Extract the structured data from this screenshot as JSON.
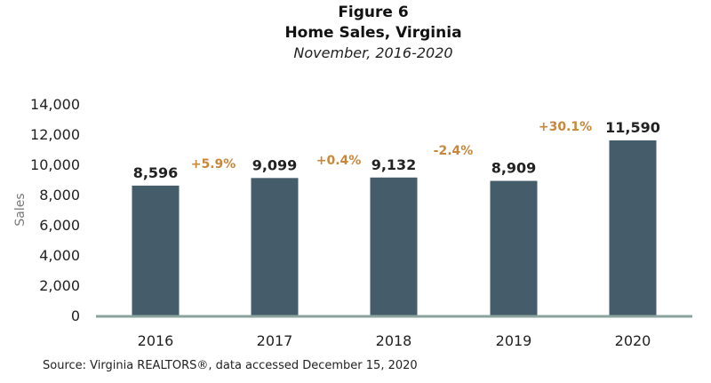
{
  "chart_data": {
    "type": "bar",
    "title": "Figure 6",
    "subtitle": "Home Sales, Virginia",
    "subtitle2": "November, 2016-2020",
    "xlabel": "",
    "ylabel": "Sales",
    "ylim": [
      0,
      14000
    ],
    "yticks": [
      0,
      2000,
      4000,
      6000,
      8000,
      10000,
      12000,
      14000
    ],
    "ytick_labels": [
      "0",
      "2,000",
      "4,000",
      "6,000",
      "8,000",
      "10,000",
      "12,000",
      "14,000"
    ],
    "categories": [
      "2016",
      "2017",
      "2018",
      "2019",
      "2020"
    ],
    "values": [
      8596,
      9099,
      9132,
      8909,
      11590
    ],
    "value_labels": [
      "8,596",
      "9,099",
      "9,132",
      "8,909",
      "11,590"
    ],
    "annotations": [
      "+5.9%",
      "+0.4%",
      "-2.4%",
      "+30.1%"
    ],
    "grid": false,
    "source": "Source: Virginia REALTORS®, data accessed December 15, 2020",
    "colors": {
      "bar": "#455d6b",
      "annotation": "#c8873a",
      "axis": "#8aa39d"
    }
  }
}
